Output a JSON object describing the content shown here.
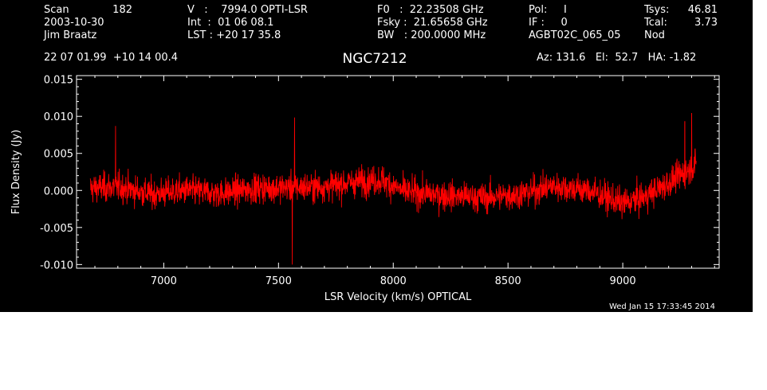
{
  "header": {
    "col1": {
      "scan_label": "Scan",
      "scan_value": "182",
      "date": "2003-10-30",
      "observer": "Jim Braatz",
      "coords": "22 07 01.99  +10 14 00.4"
    },
    "col2": {
      "v_line": "V   :    7994.0 OPTI-LSR",
      "int_line": "Int  :  01 06 08.1",
      "lst_line": "LST : +20 17 35.8"
    },
    "col3": {
      "f0_line": "F0   :  22.23508 GHz",
      "fsky_line": "Fsky :  21.65658 GHz",
      "bw_line": "BW   : 200.0000 MHz"
    },
    "col4": {
      "pol_line": "Pol:     I",
      "if_line": "IF :     0",
      "project": "AGBT02C_065_05",
      "az_line": "Az: 131.6   El:  52.7   HA: -1.82"
    },
    "col5": {
      "tsys_label": "Tsys:",
      "tsys_value": "46.81",
      "tcal_label": "Tcal:",
      "tcal_value": "3.73",
      "mode": "Nod"
    },
    "source_name": "NGC7212"
  },
  "timestamp": "Wed Jan 15 17:33:45 2014",
  "colors": {
    "background": "#000000",
    "axes": "#ffffff",
    "series": "#ff0000"
  },
  "chart_data": {
    "type": "line",
    "xlabel": "LSR Velocity (km/s) OPTICAL",
    "ylabel": "Flux Density (Jy)",
    "xlim": [
      6620,
      9420
    ],
    "ylim": [
      -0.0105,
      0.0155
    ],
    "x_ticks": [
      7000,
      7500,
      8000,
      8500,
      9000
    ],
    "y_ticks": [
      -0.01,
      -0.005,
      0.0,
      0.005,
      0.01,
      0.015
    ],
    "y_tick_labels": [
      "-0.010",
      "-0.005",
      "0.000",
      "0.005",
      "0.010",
      "0.015"
    ],
    "grid": false,
    "series": [
      {
        "x_start": 6680,
        "x_end": 9320,
        "baseline": [
          [
            6680,
            0.0003
          ],
          [
            6800,
            0.0005
          ],
          [
            6950,
            -0.0005
          ],
          [
            7100,
            0.0
          ],
          [
            7250,
            -0.0004
          ],
          [
            7400,
            0.0003
          ],
          [
            7550,
            0.0004
          ],
          [
            7700,
            0.0005
          ],
          [
            7850,
            0.0012
          ],
          [
            7950,
            0.0014
          ],
          [
            8050,
            -0.0002
          ],
          [
            8200,
            -0.0006
          ],
          [
            8400,
            -0.001
          ],
          [
            8550,
            -0.0005
          ],
          [
            8700,
            0.0006
          ],
          [
            8850,
            0.0
          ],
          [
            9000,
            -0.0018
          ],
          [
            9100,
            -0.0008
          ],
          [
            9200,
            0.001
          ],
          [
            9320,
            0.0035
          ]
        ],
        "noise_rms": 0.0018,
        "notable_points": [
          [
            7560,
            -0.01
          ],
          [
            7570,
            0.0098
          ],
          [
            9300,
            0.0104
          ],
          [
            9270,
            0.0093
          ],
          [
            6790,
            0.0087
          ]
        ]
      }
    ]
  }
}
